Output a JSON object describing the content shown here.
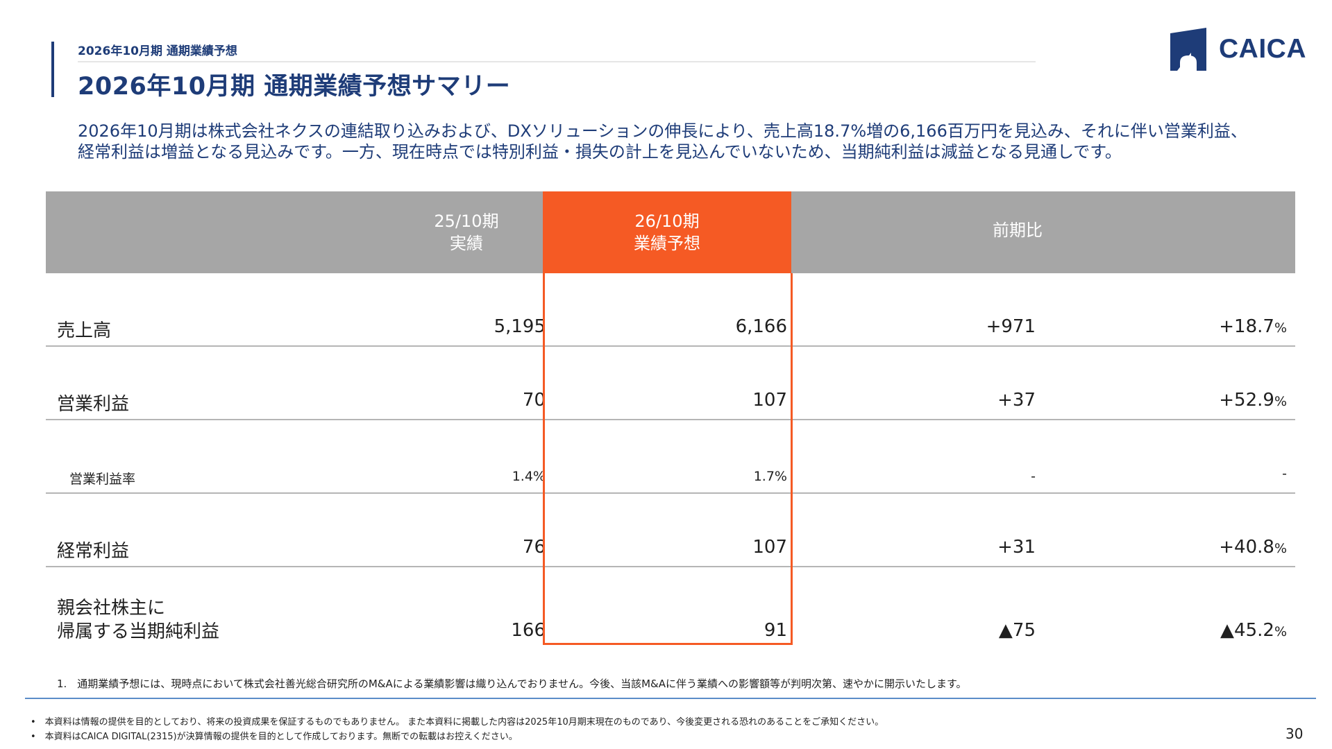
{
  "header": {
    "breadcrumb": "2026年10月期 通期業績予想",
    "title": "2026年10月期 通期業績予想サマリー",
    "logo_text": "CAICA"
  },
  "summary": "2026年10月期は株式会社ネクスの連結取り込みおよび、DXソリューションの伸長により、売上高18.7%増の6,166百万円を見込み、それに伴い営業利益、経常利益は増益となる見込みです。一方、現在時点では特別利益・損失の計上を見込んでいないため、当期純利益は減益となる見通しです。",
  "table": {
    "headers": {
      "prev_line1": "25/10期",
      "prev_line2": "実績",
      "forecast_line1": "26/10期",
      "forecast_line2": "業績予想",
      "compare": "前期比"
    },
    "rows": [
      {
        "label": "売上高",
        "prev": "5,195",
        "forecast": "6,166",
        "diff": "+971",
        "pct": "+18.7",
        "pct_unit": "%"
      },
      {
        "label": "営業利益",
        "prev": "70",
        "forecast": "107",
        "diff": "+37",
        "pct": "+52.9",
        "pct_unit": "%"
      },
      {
        "label": "営業利益率",
        "prev": "1.4%",
        "forecast": "1.7%",
        "diff": "-",
        "pct": "-",
        "pct_unit": ""
      },
      {
        "label": "経常利益",
        "prev": "76",
        "forecast": "107",
        "diff": "+31",
        "pct": "+40.8",
        "pct_unit": "%"
      },
      {
        "label_line1": "親会社株主に",
        "label_line2": "帰属する当期純利益",
        "prev": "166",
        "forecast": "91",
        "diff": "▲75",
        "pct": "▲45.2",
        "pct_unit": "%"
      }
    ]
  },
  "footnote": "1.　通期業績予想には、現時点において株式会社善光総合研究所のM&Aによる業績影響は織り込んでおりません。今後、当該M&Aに伴う業績への影響額等が判明次第、速やかに開示いたします。",
  "disclaimers": [
    "•　本資料は情報の提供を目的としており、将来の投資成果を保証するものでもありません。 また本資料に掲載した内容は2025年10月期末現在のものであり、今後変更される恐れのあることをご承知ください。",
    "•　本資料はCAICA DIGITAL(2315)が決算情報の提供を目的として作成しております。無断での転載はお控えください。"
  ],
  "page_number": "30",
  "colors": {
    "navy": "#1e3c78",
    "orange": "#f55a24",
    "header_gray": "#a6a6a6",
    "rule_blue": "#5a8cc8"
  }
}
